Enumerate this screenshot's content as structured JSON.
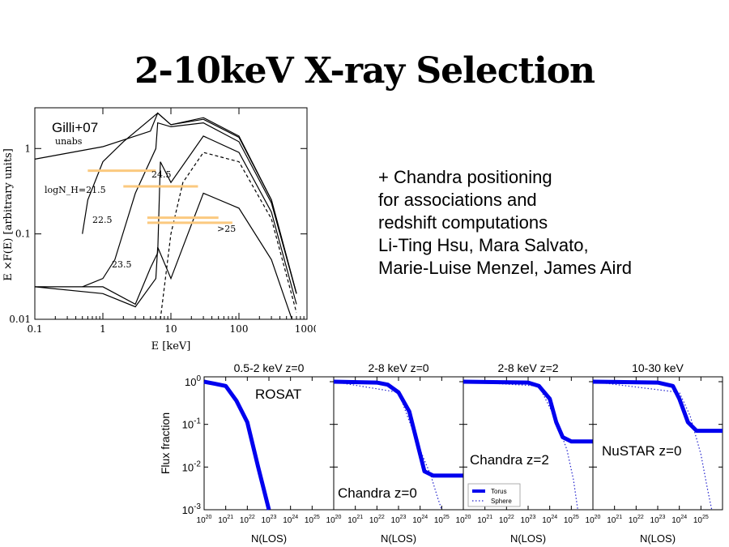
{
  "slide": {
    "title": "2-10keV X-ray Selection",
    "notes": [
      "+ Chandra positioning",
      "for associations and",
      "redshift computations",
      "Li-Ting Hsu, Mara Salvato,",
      "Marie-Luise Menzel, James Aird"
    ]
  },
  "chart_data": [
    {
      "type": "line",
      "xlabel": "E [keV]",
      "ylabel": "E ×F(E) [arbitrary units]",
      "xscale": "log",
      "yscale": "log",
      "xlim": [
        0.1,
        1000
      ],
      "ylim": [
        0.01,
        3
      ],
      "xticks": [
        "0.1",
        "1",
        "10",
        "100",
        "1000"
      ],
      "yticks": [
        "0.01",
        "0.1",
        "1"
      ],
      "annotations": [
        "Gilli+07",
        "unabs",
        "logN_H=21.5",
        "22.5",
        "23.5",
        "24.5",
        ">25"
      ],
      "highlight_color": "#fbc97f",
      "series": [
        {
          "name": "unabs",
          "x": [
            0.1,
            1,
            5,
            6.4,
            10,
            30,
            100,
            300,
            700
          ],
          "y": [
            0.75,
            1.05,
            1.6,
            2.6,
            1.9,
            2.3,
            1.4,
            0.25,
            0.02
          ]
        },
        {
          "name": "21.5",
          "x": [
            0.5,
            0.6,
            1,
            2,
            6.4,
            10,
            30,
            100,
            300,
            700
          ],
          "y": [
            0.1,
            0.25,
            0.7,
            1.2,
            2.6,
            1.9,
            2.2,
            1.35,
            0.25,
            0.02
          ]
        },
        {
          "name": "22.5",
          "x": [
            0.5,
            1,
            1.5,
            3,
            6,
            6.4,
            10,
            30,
            100,
            300,
            700
          ],
          "y": [
            0.024,
            0.03,
            0.05,
            0.3,
            1.0,
            2.0,
            1.8,
            2.0,
            1.2,
            0.23,
            0.02
          ]
        },
        {
          "name": "23.5",
          "x": [
            0.1,
            1,
            3,
            5,
            6.4,
            7,
            10,
            30,
            100,
            300,
            700
          ],
          "y": [
            0.024,
            0.024,
            0.015,
            0.04,
            0.06,
            0.7,
            0.4,
            1.4,
            0.9,
            0.18,
            0.015
          ]
        },
        {
          "name": "24.5",
          "x": [
            0.1,
            1,
            3,
            6,
            6.4,
            10,
            30,
            100,
            300,
            600
          ],
          "y": [
            0.024,
            0.02,
            0.014,
            0.03,
            0.07,
            0.03,
            0.3,
            0.2,
            0.05,
            0.01
          ]
        },
        {
          "name": ">25",
          "x": [
            7,
            10,
            15,
            30,
            100,
            300,
            700
          ],
          "y": [
            0.01,
            0.1,
            0.4,
            0.9,
            0.7,
            0.15,
            0.012
          ]
        }
      ]
    },
    {
      "type": "line",
      "ylabel": "Flux fraction",
      "xlabel": "N_H(LOS)",
      "xscale": "log",
      "yscale": "log",
      "xlim": [
        1e+20,
        1e+26
      ],
      "ylim": [
        0.001,
        1.3
      ],
      "yticks": [
        "10^0",
        "10^-1",
        "10^-2",
        "10^-3"
      ],
      "xticks": [
        "10^20",
        "10^21",
        "10^22",
        "10^23",
        "10^24",
        "10^25"
      ],
      "legend": [
        "Torus",
        "Sphere"
      ],
      "legend_position": "lower-left of third panel",
      "panels": [
        {
          "title": "0.5-2 keV z=0",
          "label": "ROSAT",
          "torus": {
            "x": [
              20,
              20.5,
              21,
              21.5,
              22,
              22.5,
              22.8,
              23
            ],
            "y": [
              0,
              -0.05,
              -0.1,
              -0.45,
              -0.95,
              -2,
              -2.6,
              -3
            ]
          }
        },
        {
          "title": "2-8 keV z=0",
          "label": "Chandra z=0",
          "torus": {
            "x": [
              20,
              22,
              22.5,
              23,
              23.5,
              23.9,
              24.2,
              24.6,
              26
            ],
            "y": [
              0,
              -0.02,
              -0.07,
              -0.25,
              -0.7,
              -1.5,
              -2.1,
              -2.2,
              -2.2
            ]
          },
          "sphere": {
            "x": [
              20,
              23,
              24,
              24.5,
              24.8,
              25
            ],
            "y": [
              0,
              -0.25,
              -1.6,
              -2.2,
              -2.7,
              -3
            ]
          }
        },
        {
          "title": "2-8 keV z=2",
          "label": "Chandra z=2",
          "torus": {
            "x": [
              20,
              23,
              23.5,
              24,
              24.3,
              24.6,
              25,
              26
            ],
            "y": [
              0,
              -0.02,
              -0.1,
              -0.4,
              -0.95,
              -1.3,
              -1.4,
              -1.4
            ]
          },
          "sphere": {
            "x": [
              20,
              23.5,
              24.3,
              24.8,
              25.1,
              25.3
            ],
            "y": [
              0,
              -0.1,
              -0.9,
              -1.6,
              -2.3,
              -3
            ]
          }
        },
        {
          "title": "10-30 keV",
          "label": "NuSTAR z=0",
          "torus": {
            "x": [
              20,
              23,
              23.7,
              24,
              24.4,
              24.8,
              26
            ],
            "y": [
              0,
              -0.02,
              -0.1,
              -0.4,
              -0.95,
              -1.15,
              -1.15
            ]
          },
          "sphere": {
            "x": [
              20,
              24,
              24.5,
              25,
              25.3,
              25.5
            ],
            "y": [
              0,
              -0.25,
              -0.8,
              -1.7,
              -2.5,
              -3
            ]
          }
        }
      ]
    }
  ]
}
